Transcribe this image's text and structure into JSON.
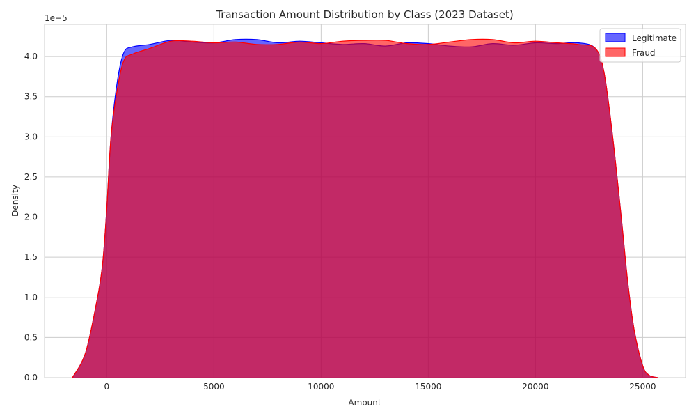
{
  "chart_data": {
    "type": "area",
    "title": "Transaction Amount Distribution by Class (2023 Dataset)",
    "xlabel": "Amount",
    "ylabel": "Density",
    "y_scale_label": "1e−5",
    "xlim": [
      -2900,
      27000
    ],
    "ylim": [
      0,
      4.4
    ],
    "x_ticks": [
      0,
      5000,
      10000,
      15000,
      20000,
      25000
    ],
    "x_tick_labels": [
      "0",
      "5000",
      "10000",
      "15000",
      "20000",
      "25000"
    ],
    "y_ticks": [
      0,
      0.5,
      1.0,
      1.5,
      2.0,
      2.5,
      3.0,
      3.5,
      4.0
    ],
    "y_tick_labels": [
      "0.0",
      "0.5",
      "1.0",
      "1.5",
      "2.0",
      "2.5",
      "3.0",
      "3.5",
      "4.0"
    ],
    "grid": true,
    "legend_position": "top-right",
    "series": [
      {
        "name": "Legitimate",
        "color": "#0000ff",
        "x": [
          -1600,
          -1000,
          -500,
          -200,
          0,
          200,
          500,
          800,
          1200,
          2000,
          3000,
          4000,
          5000,
          6000,
          7000,
          8000,
          9000,
          10000,
          11000,
          12000,
          13000,
          14000,
          15000,
          16000,
          17000,
          18000,
          19000,
          20000,
          21000,
          22000,
          22800,
          23200,
          23600,
          24000,
          24300,
          24600,
          25000,
          25300,
          25700
        ],
        "y": [
          0.0,
          0.3,
          0.9,
          1.4,
          2.1,
          3.0,
          3.7,
          4.05,
          4.12,
          4.15,
          4.2,
          4.18,
          4.17,
          4.21,
          4.21,
          4.17,
          4.19,
          4.17,
          4.15,
          4.16,
          4.13,
          4.17,
          4.16,
          4.13,
          4.12,
          4.16,
          4.14,
          4.17,
          4.16,
          4.17,
          4.1,
          3.8,
          3.0,
          2.0,
          1.2,
          0.6,
          0.15,
          0.03,
          0.0
        ]
      },
      {
        "name": "Fraud",
        "color": "#ff0000",
        "x": [
          -1600,
          -1000,
          -500,
          -200,
          0,
          200,
          500,
          800,
          1200,
          2000,
          3000,
          4000,
          5000,
          6000,
          7000,
          8000,
          9000,
          10000,
          11000,
          12000,
          13000,
          14000,
          15000,
          16000,
          17000,
          18000,
          19000,
          20000,
          21000,
          22000,
          22800,
          23200,
          23600,
          24000,
          24300,
          24600,
          25000,
          25300,
          25700
        ],
        "y": [
          0.0,
          0.3,
          0.9,
          1.4,
          2.1,
          3.0,
          3.6,
          3.95,
          4.03,
          4.1,
          4.19,
          4.19,
          4.17,
          4.18,
          4.15,
          4.15,
          4.18,
          4.16,
          4.19,
          4.2,
          4.2,
          4.16,
          4.15,
          4.18,
          4.21,
          4.21,
          4.17,
          4.19,
          4.17,
          4.15,
          4.1,
          3.8,
          3.0,
          2.0,
          1.2,
          0.6,
          0.15,
          0.03,
          0.0
        ]
      }
    ]
  }
}
